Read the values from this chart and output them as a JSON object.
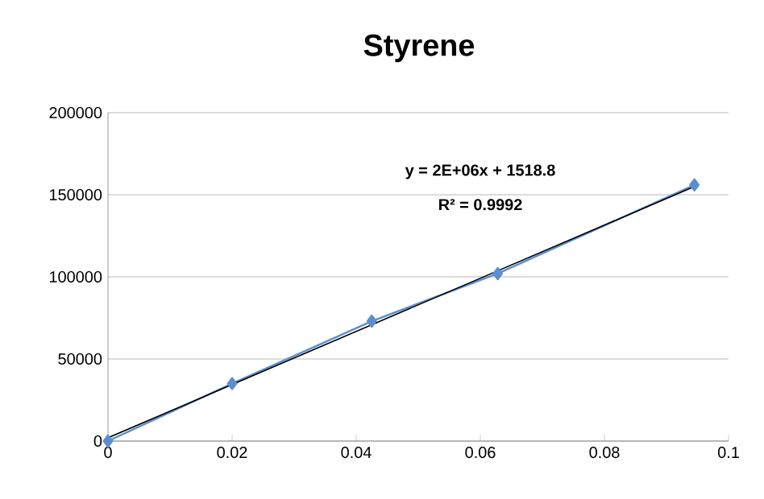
{
  "chart_data": {
    "type": "line",
    "title": "Styrene",
    "series": [
      {
        "color": "#5b8fd0",
        "marker": "diamond",
        "x": [
          0,
          0.02,
          0.0425,
          0.0628,
          0.0945
        ],
        "values": [
          0,
          35000,
          73000,
          102000,
          156000
        ]
      },
      {
        "color": "#000000",
        "marker": "none",
        "x": [
          0,
          0.0945
        ],
        "values": [
          2000,
          155000
        ]
      }
    ],
    "annotations": [
      "y = 2E+06x + 1518.8",
      "R² = 0.9992"
    ],
    "xlim": [
      0,
      0.1
    ],
    "xticks": [
      0,
      0.02,
      0.04,
      0.06,
      0.08,
      0.1
    ],
    "ylim": [
      0,
      200000
    ],
    "yticks": [
      0,
      50000,
      100000,
      150000,
      200000
    ],
    "grid": "y"
  }
}
